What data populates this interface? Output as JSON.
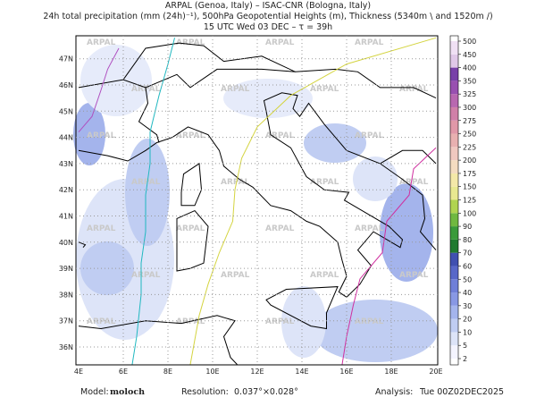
{
  "header": {
    "line1": "ARPAL (Genoa, Italy)  –  ISAC-CNR (Bologna, Italy)",
    "line2": "24h total precipitation (mm (24h)⁻¹), 500hPa Geopotential Heights (m), Thickness (5340m \\ and 1520m /)",
    "line3": "15 UTC Wed 03 DEC  –  τ = 39h"
  },
  "map": {
    "lon_labels": [
      "4E",
      "6E",
      "8E",
      "10E",
      "12E",
      "14E",
      "16E",
      "18E",
      "20E"
    ],
    "lat_labels": [
      "36N",
      "37N",
      "38N",
      "39N",
      "40N",
      "41N",
      "42N",
      "43N",
      "44N",
      "45N",
      "46N",
      "47N"
    ],
    "watermark": "ARPAL"
  },
  "colorbar": {
    "levels": [
      2,
      5,
      10,
      20,
      30,
      40,
      50,
      60,
      70,
      80,
      90,
      100,
      125,
      150,
      175,
      200,
      225,
      250,
      275,
      300,
      325,
      350,
      400,
      450,
      500
    ],
    "colors": [
      "#f4f4ff",
      "#dde4f8",
      "#c0cdf2",
      "#a4b4ec",
      "#8898e4",
      "#6f7fd8",
      "#5868c8",
      "#4050b0",
      "#207a30",
      "#3a9a3a",
      "#70b840",
      "#b0d450",
      "#e8e890",
      "#f4e8a8",
      "#f4dcc0",
      "#f0c8c0",
      "#e8b0b0",
      "#e098a8",
      "#d080a8",
      "#b868b0",
      "#9850b0",
      "#7840a8",
      "#e0c8e8",
      "#f0e0f4"
    ]
  },
  "footer": {
    "model_label": "Model:",
    "model": "moloch",
    "resolution_label": "Resolution:",
    "resolution": "0.037°×0.028°",
    "analysis_label": "Analysis:",
    "analysis": "Tue 00Z02DEC2025"
  }
}
